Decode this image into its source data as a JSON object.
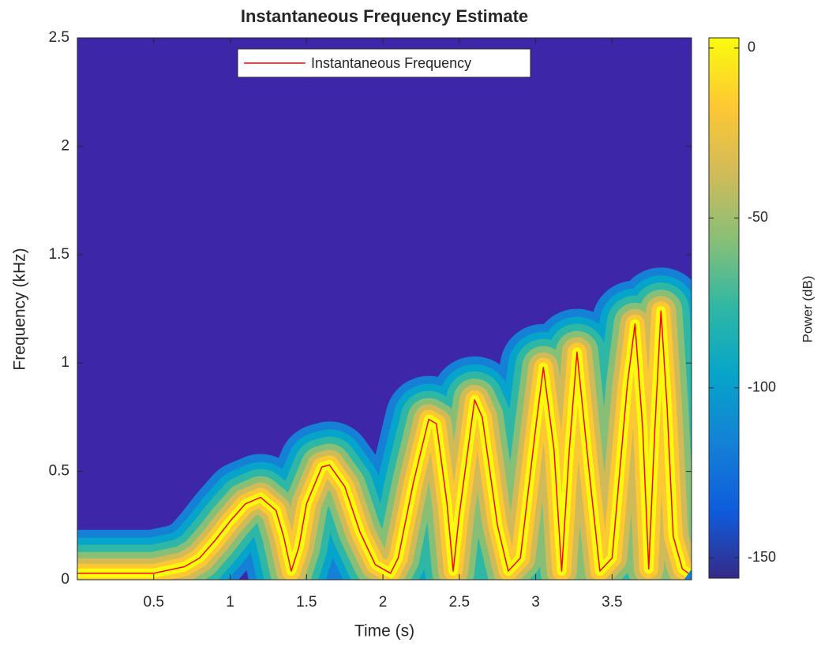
{
  "chart_data": {
    "type": "spectrogram",
    "title": "Instantaneous Frequency Estimate",
    "x_label": "Time (s)",
    "y_label": "Frequency (kHz)",
    "xlim": [
      0,
      4.02
    ],
    "ylim": [
      0,
      2.5
    ],
    "xticks": [
      0.5,
      1,
      1.5,
      2,
      2.5,
      3,
      3.5
    ],
    "yticks": [
      0,
      0.5,
      1,
      1.5,
      2,
      2.5
    ],
    "background": "#3e26a8",
    "legend_position": "north",
    "series": [
      {
        "name": "Instantaneous Frequency",
        "color": "#ff0000",
        "x": [
          0,
          0.5,
          0.7,
          0.8,
          0.9,
          1.0,
          1.1,
          1.2,
          1.3,
          1.35,
          1.4,
          1.45,
          1.5,
          1.6,
          1.65,
          1.75,
          1.85,
          1.95,
          2.05,
          2.1,
          2.2,
          2.3,
          2.35,
          2.42,
          2.46,
          2.5,
          2.6,
          2.65,
          2.75,
          2.82,
          2.9,
          3.0,
          3.05,
          3.12,
          3.17,
          3.22,
          3.27,
          3.35,
          3.42,
          3.5,
          3.6,
          3.65,
          3.7,
          3.74,
          3.78,
          3.82,
          3.86,
          3.9,
          3.96,
          4.0
        ],
        "values": [
          0.03,
          0.03,
          0.06,
          0.1,
          0.18,
          0.27,
          0.35,
          0.38,
          0.32,
          0.2,
          0.04,
          0.15,
          0.35,
          0.52,
          0.53,
          0.43,
          0.22,
          0.07,
          0.03,
          0.1,
          0.45,
          0.74,
          0.72,
          0.35,
          0.04,
          0.3,
          0.83,
          0.75,
          0.25,
          0.04,
          0.1,
          0.7,
          0.98,
          0.6,
          0.04,
          0.6,
          1.05,
          0.5,
          0.04,
          0.1,
          0.9,
          1.18,
          0.7,
          0.05,
          0.7,
          1.24,
          0.8,
          0.2,
          0.05,
          0.03
        ]
      }
    ],
    "colorbar": {
      "label": "Power (dB)",
      "clim": [
        -156,
        3
      ],
      "ticks": [
        0,
        -50,
        -100,
        -150
      ],
      "colors": [
        "#352a87",
        "#0f5cdd",
        "#1481d6",
        "#06a4ca",
        "#2eb7a4",
        "#87bf77",
        "#d1bb59",
        "#fec832",
        "#f9fb0e"
      ]
    }
  }
}
